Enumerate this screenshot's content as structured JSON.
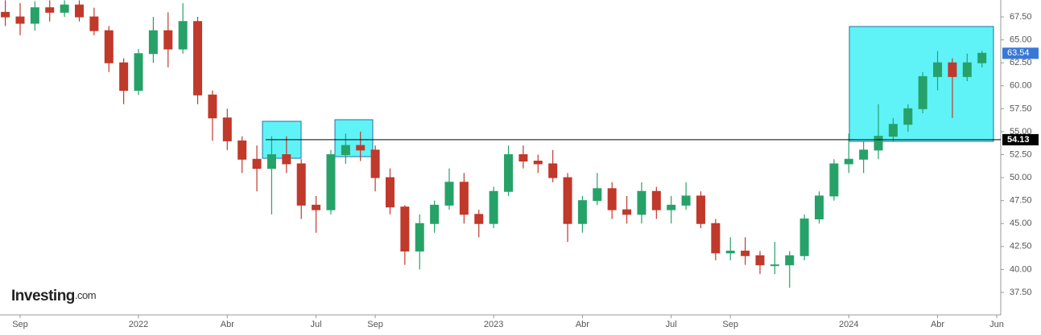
{
  "chart_data": {
    "type": "candlestick",
    "brand": "Investing",
    "brand_suffix": ".com",
    "categories": [
      null,
      "Sep",
      null,
      null,
      null,
      null,
      null,
      null,
      null,
      "2022",
      null,
      null,
      null,
      null,
      null,
      "Abr",
      null,
      null,
      null,
      null,
      null,
      "Jul",
      null,
      null,
      null,
      "Sep",
      null,
      null,
      null,
      null,
      null,
      null,
      null,
      "2023",
      null,
      null,
      null,
      null,
      null,
      "Abr",
      null,
      null,
      null,
      null,
      null,
      "Jul",
      null,
      null,
      null,
      "Sep",
      null,
      null,
      null,
      null,
      null,
      null,
      null,
      "2024",
      null,
      null,
      null,
      null,
      null,
      "Abr",
      null,
      null,
      null,
      "Jun"
    ],
    "open": [
      68,
      67.5,
      66.8,
      68.5,
      68,
      68.8,
      67.5,
      66,
      62.5,
      59.5,
      63.5,
      66,
      64,
      67,
      59,
      56.5,
      54,
      52,
      51,
      52.5,
      51.5,
      47,
      46.5,
      52.5,
      53.5,
      53,
      50,
      46.8,
      42,
      45,
      47,
      49.5,
      46,
      45,
      48.5,
      52.5,
      51.8,
      51.5,
      50,
      45,
      47.5,
      48.8,
      46.5,
      46,
      48.5,
      46.5,
      47,
      48,
      45,
      41.8,
      42,
      41.5,
      40.5,
      40.5,
      41.5,
      45.5,
      48,
      51.5,
      52,
      53,
      54.5,
      55.8,
      57.5,
      61,
      62.5,
      61,
      62.5,
      null
    ],
    "high": [
      69.3,
      69,
      69.2,
      69.3,
      69.3,
      69.3,
      68.5,
      66.5,
      63,
      64,
      67.5,
      68,
      69,
      67.5,
      59.5,
      57.5,
      54.5,
      53.5,
      54.5,
      54.5,
      52,
      48,
      53,
      54.8,
      55,
      53.5,
      51,
      47,
      46,
      47.5,
      51,
      50.5,
      46.5,
      49,
      53.5,
      53.5,
      52.5,
      53,
      50.5,
      48,
      50.5,
      49.5,
      48,
      49.5,
      49,
      48,
      49.5,
      48.5,
      45.5,
      43.5,
      43.5,
      42,
      43,
      42,
      46,
      48.5,
      52,
      54.8,
      54,
      58,
      56.5,
      58,
      61.5,
      63.8,
      63,
      63.5,
      63.8,
      null
    ],
    "low": [
      66.5,
      65.5,
      66,
      67,
      67.5,
      67,
      65.5,
      61.5,
      58,
      59,
      62.5,
      62,
      63.5,
      58,
      54,
      53,
      50.5,
      48.5,
      46,
      50.5,
      45.5,
      44,
      46,
      51.5,
      51.8,
      48.5,
      46,
      40.5,
      40,
      44,
      46.5,
      45,
      43.5,
      44.5,
      48,
      51,
      50.5,
      49.5,
      43,
      44,
      47,
      45.5,
      45,
      45,
      45.5,
      45,
      46.5,
      44.5,
      41,
      41,
      40.5,
      39.5,
      39.5,
      38,
      41,
      45,
      47.5,
      50.5,
      50.5,
      52,
      54,
      55,
      57,
      59.5,
      56.5,
      60.5,
      62,
      null
    ],
    "close": [
      67.5,
      66.8,
      68.5,
      68,
      68.8,
      67.5,
      66,
      62.5,
      59.5,
      63.5,
      66,
      64,
      67,
      59,
      56.5,
      54,
      52,
      51,
      52.5,
      51.5,
      47,
      46.5,
      52.5,
      53.5,
      53,
      50,
      46.8,
      42,
      45,
      47,
      49.5,
      46,
      45,
      48.5,
      52.5,
      51.8,
      51.5,
      50,
      45,
      47.5,
      48.8,
      46.5,
      46,
      48.5,
      46.5,
      47,
      48,
      45,
      41.8,
      42,
      41.5,
      40.5,
      40.5,
      41.5,
      45.5,
      48,
      51.5,
      52,
      53,
      54.5,
      55.8,
      57.5,
      61,
      62.5,
      61,
      62.5,
      63.54,
      null
    ],
    "up_color": "#26a269",
    "down_color": "#c0392b",
    "last_price": 63.54,
    "last_price_color": "#3a78d6",
    "hline": 54.13,
    "hline_color": "#000000",
    "ylim": [
      35.05,
      69.34
    ],
    "yticks": [
      {
        "value": 37.5,
        "label": "37.50"
      },
      {
        "value": 40,
        "label": "40.00"
      },
      {
        "value": 42.5,
        "label": "42.50"
      },
      {
        "value": 45,
        "label": "45.00"
      },
      {
        "value": 47.5,
        "label": "47.50"
      },
      {
        "value": 50,
        "label": "50.00"
      },
      {
        "value": 52.5,
        "label": "52.50"
      },
      {
        "value": 55,
        "label": "55.00"
      },
      {
        "value": 57.5,
        "label": "57.50"
      },
      {
        "value": 60,
        "label": "60.00"
      },
      {
        "value": 62.5,
        "label": "62.50"
      },
      {
        "value": 65,
        "label": "65.00"
      },
      {
        "value": 67.5,
        "label": "67.50"
      }
    ],
    "grid": false
  }
}
